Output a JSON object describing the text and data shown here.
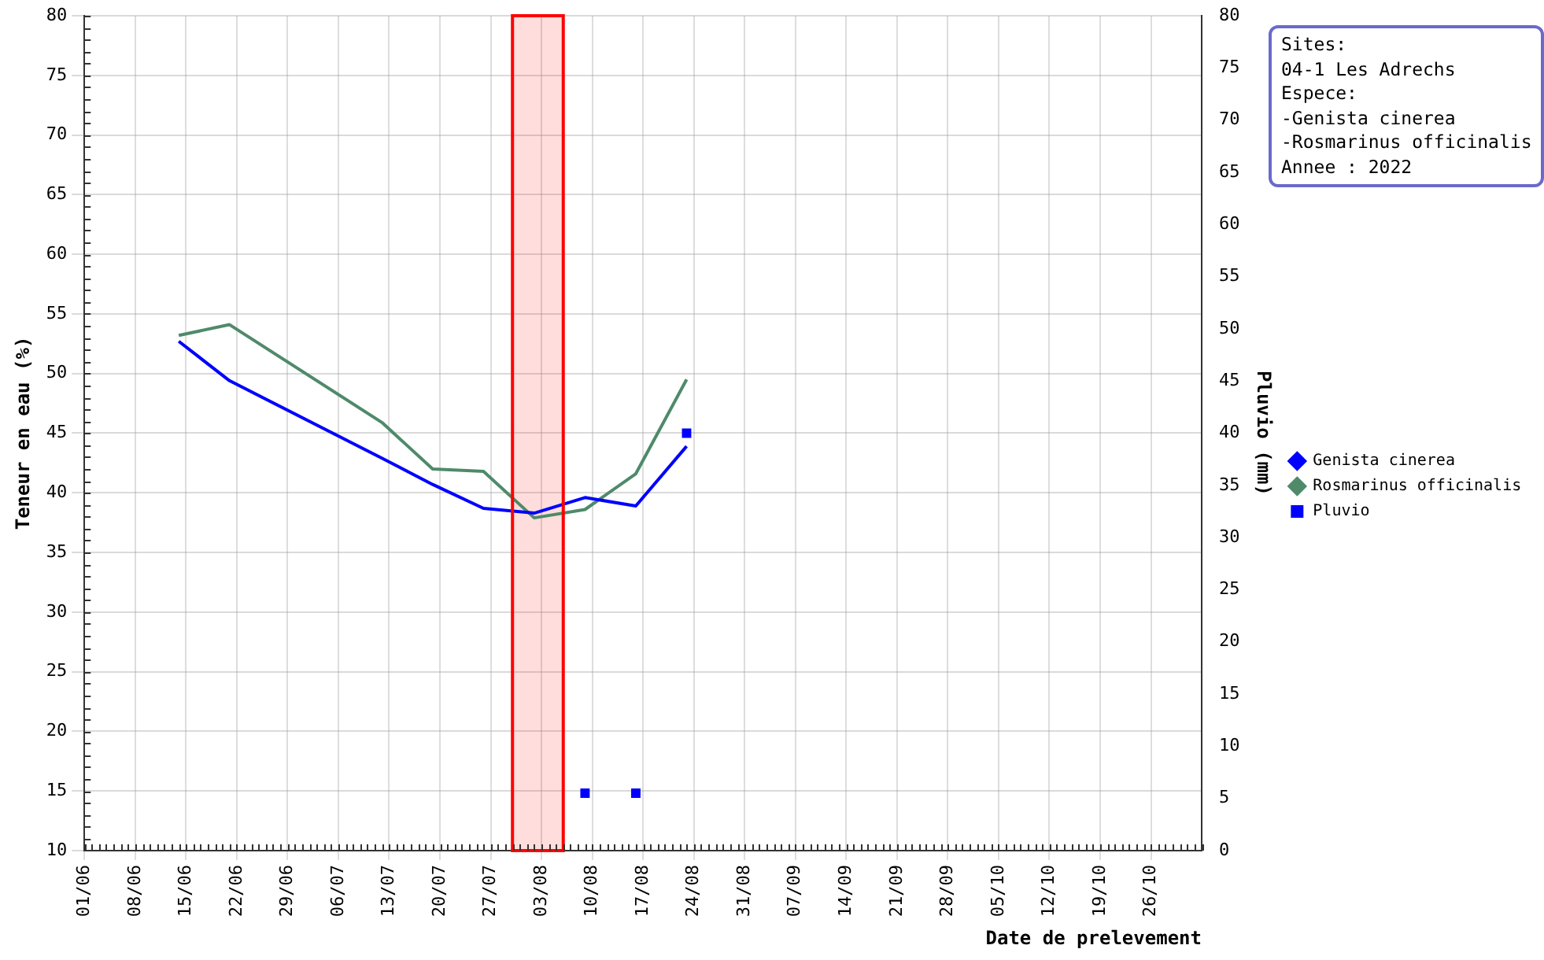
{
  "chart_data": {
    "type": "line",
    "xlabel": "Date de prelevement",
    "ylabel": "Teneur en eau (%)",
    "y2label": "Pluvio (mm)",
    "x": [
      "--06-14",
      "--06-21",
      "--07-12",
      "--07-19",
      "--07-26",
      "--08-02",
      "--08-09",
      "--08-16",
      "--08-23"
    ],
    "series": [
      {
        "name": "Genista cinerea",
        "color": "#0000ff",
        "values": [
          52.7,
          49.4,
          42.9,
          40.7,
          38.7,
          38.3,
          39.6,
          38.9,
          43.9
        ]
      },
      {
        "name": "Rosmarinus officinalis",
        "color": "#4f8a6a",
        "values": [
          53.2,
          54.1,
          45.9,
          42.0,
          41.8,
          37.9,
          38.6,
          41.6,
          49.5
        ]
      },
      {
        "name": "Pluvio",
        "type": "scatter",
        "marker": "square",
        "axis": "y2",
        "color": "#0000ff",
        "x": [
          "--08-09",
          "--08-16",
          "--08-23"
        ],
        "values": [
          5.5,
          5.5,
          40
        ]
      }
    ],
    "xlim": [
      "--06-01",
      "--11-02"
    ],
    "xticks": [
      {
        "value": "--06-01",
        "label": "01/06"
      },
      {
        "value": "--06-08",
        "label": "08/06"
      },
      {
        "value": "--06-15",
        "label": "15/06"
      },
      {
        "value": "--06-22",
        "label": "22/06"
      },
      {
        "value": "--06-29",
        "label": "29/06"
      },
      {
        "value": "--07-06",
        "label": "06/07"
      },
      {
        "value": "--07-13",
        "label": "13/07"
      },
      {
        "value": "--07-20",
        "label": "20/07"
      },
      {
        "value": "--07-27",
        "label": "27/07"
      },
      {
        "value": "--08-03",
        "label": "03/08"
      },
      {
        "value": "--08-10",
        "label": "10/08"
      },
      {
        "value": "--08-17",
        "label": "17/08"
      },
      {
        "value": "--08-24",
        "label": "24/08"
      },
      {
        "value": "--08-31",
        "label": "31/08"
      },
      {
        "value": "--09-07",
        "label": "07/09"
      },
      {
        "value": "--09-14",
        "label": "14/09"
      },
      {
        "value": "--09-21",
        "label": "21/09"
      },
      {
        "value": "--09-28",
        "label": "28/09"
      },
      {
        "value": "--10-05",
        "label": "05/10"
      },
      {
        "value": "--10-12",
        "label": "12/10"
      },
      {
        "value": "--10-19",
        "label": "19/10"
      },
      {
        "value": "--10-26",
        "label": "26/10"
      }
    ],
    "ylim": [
      10,
      80
    ],
    "yticks": [
      10,
      15,
      20,
      25,
      30,
      35,
      40,
      45,
      50,
      55,
      60,
      65,
      70,
      75,
      80
    ],
    "y2lim": [
      0,
      80
    ],
    "y2ticks": [
      0,
      5,
      10,
      15,
      20,
      25,
      30,
      35,
      40,
      45,
      50,
      55,
      60,
      65,
      70,
      75,
      80
    ],
    "bands": [
      {
        "axis": "x",
        "from": "--07-30",
        "to": "--08-06",
        "color": "#ff0000"
      }
    ],
    "grid": true,
    "legend": "right",
    "marker": "none",
    "line_style": "solid",
    "annotations": [
      "Sites:",
      "04-1 Les Adrechs",
      "Espece:",
      "-Genista cinerea",
      "-Rosmarinus officinalis",
      "Annee : 2022"
    ]
  }
}
